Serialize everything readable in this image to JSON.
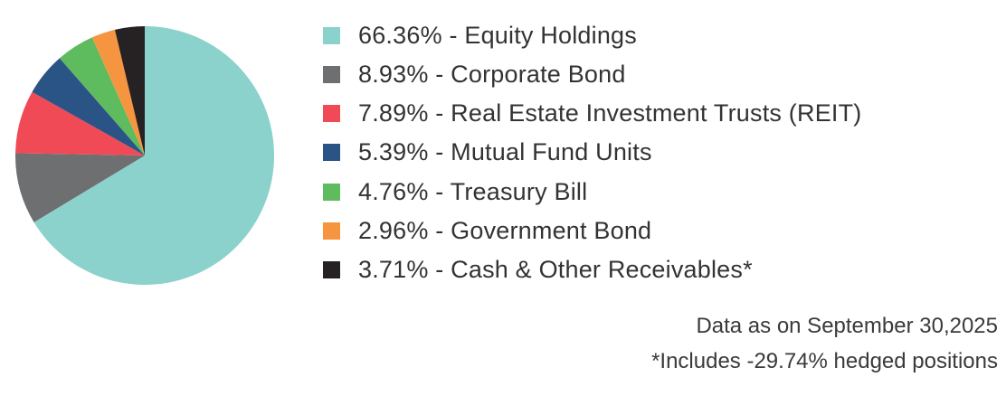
{
  "chart_data": {
    "type": "pie",
    "title": "",
    "legend_position": "right",
    "start_angle": "12-oclock",
    "direction": "clockwise",
    "total": 100.0,
    "slices": [
      {
        "legend_text": "66.36% - Equity Holdings",
        "label": "Equity Holdings",
        "value": 66.36,
        "color": "#8BD1CC"
      },
      {
        "legend_text": "8.93% - Corporate Bond",
        "label": "Corporate Bond",
        "value": 8.93,
        "color": "#6E6F71"
      },
      {
        "legend_text": "7.89% - Real Estate Investment Trusts (REIT)",
        "label": "Real Estate Investment Trusts (REIT)",
        "value": 7.89,
        "color": "#EF4A56"
      },
      {
        "legend_text": "5.39% - Mutual Fund Units",
        "label": "Mutual Fund Units",
        "value": 5.39,
        "color": "#2B5486"
      },
      {
        "legend_text": "4.76% - Treasury Bill",
        "label": "Treasury Bill",
        "value": 4.76,
        "color": "#5EBB5E"
      },
      {
        "legend_text": "2.96% - Government Bond",
        "label": "Government Bond",
        "value": 2.96,
        "color": "#F6953F"
      },
      {
        "legend_text": "3.71% - Cash & Other Receivables*",
        "label": "Cash & Other Receivables*",
        "value": 3.71,
        "color": "#262223"
      }
    ]
  },
  "footer": {
    "date_note": "Data as on September 30,2025",
    "hedge_note": "*Includes -29.74% hedged positions"
  }
}
